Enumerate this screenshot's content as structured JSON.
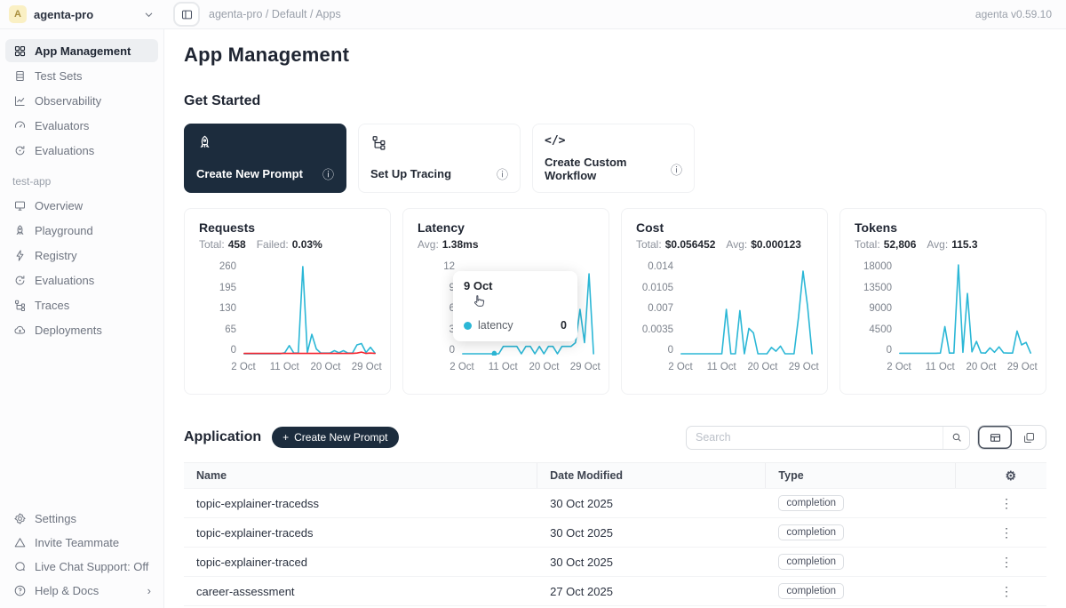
{
  "topbar": {
    "avatar_letter": "A",
    "workspace": "agenta-pro",
    "breadcrumb": "agenta-pro / Default / Apps",
    "version": "agenta v0.59.10"
  },
  "sidebar": {
    "workspace_items": [
      {
        "label": "App Management",
        "icon": "grid-icon",
        "active": true
      },
      {
        "label": "Test Sets",
        "icon": "table-icon"
      },
      {
        "label": "Observability",
        "icon": "chart-icon"
      },
      {
        "label": "Evaluators",
        "icon": "gauge-icon"
      },
      {
        "label": "Evaluations",
        "icon": "sync-icon"
      }
    ],
    "app_section_label": "test-app",
    "app_items": [
      {
        "label": "Overview",
        "icon": "monitor-icon"
      },
      {
        "label": "Playground",
        "icon": "rocket-icon"
      },
      {
        "label": "Registry",
        "icon": "bolt-icon"
      },
      {
        "label": "Evaluations",
        "icon": "sync-icon"
      },
      {
        "label": "Traces",
        "icon": "trace-icon"
      },
      {
        "label": "Deployments",
        "icon": "cloud-icon"
      }
    ],
    "footer_items": [
      {
        "label": "Settings",
        "icon": "gear-icon"
      },
      {
        "label": "Invite Teammate",
        "icon": "triangle-icon"
      },
      {
        "label": "Live Chat Support: Off",
        "icon": "chat-icon"
      },
      {
        "label": "Help & Docs",
        "icon": "help-icon"
      }
    ]
  },
  "main": {
    "title": "App Management",
    "get_started": {
      "title": "Get Started",
      "cards": [
        {
          "label": "Create New Prompt",
          "variant": "dark",
          "icon": "rocket-icon"
        },
        {
          "label": "Set Up Tracing",
          "variant": "light",
          "icon": "trace-icon"
        },
        {
          "label": "Create Custom Workflow",
          "variant": "light",
          "icon": "code-icon"
        }
      ]
    },
    "application": {
      "title": "Application",
      "create_button_label": "Create New Prompt",
      "search_placeholder": "Search",
      "table": {
        "headers": [
          "Name",
          "Date Modified",
          "Type"
        ],
        "rows": [
          {
            "name": "topic-explainer-tracedss",
            "date_modified": "30 Oct 2025",
            "type": "completion"
          },
          {
            "name": "topic-explainer-traceds",
            "date_modified": "30 Oct 2025",
            "type": "completion"
          },
          {
            "name": "topic-explainer-traced",
            "date_modified": "30 Oct 2025",
            "type": "completion"
          },
          {
            "name": "career-assessment",
            "date_modified": "27 Oct 2025",
            "type": "completion"
          }
        ]
      }
    }
  },
  "latency_tooltip": {
    "date": "9 Oct",
    "series": "latency",
    "value": "0"
  },
  "icons": {
    "info": "ⓘ",
    "gear": "⚙",
    "ellipsis": "⋮",
    "chevron_right": "›",
    "plus": "+",
    "code": "</>"
  },
  "colors": {
    "accent": "#2bb7d6",
    "failed_red": "#f5222d",
    "dark_navy": "#1c2c3d"
  },
  "chart_data": [
    {
      "type": "line",
      "title": "Requests",
      "stats": [
        {
          "label": "Total:",
          "value": "458"
        },
        {
          "label": "Failed:",
          "value": "0.03%"
        }
      ],
      "ylim": [
        0,
        260
      ],
      "yticks": [
        "260",
        "195",
        "130",
        "65",
        "0"
      ],
      "xlim": [
        2,
        31
      ],
      "xticks": [
        {
          "label": "2 Oct",
          "day": 2
        },
        {
          "label": "11 Oct",
          "day": 11
        },
        {
          "label": "20 Oct",
          "day": 20
        },
        {
          "label": "29 Oct",
          "day": 29
        }
      ],
      "series": [
        {
          "name": "requests",
          "color": "#2bb7d6",
          "points": [
            [
              2,
              0
            ],
            [
              3,
              0
            ],
            [
              4,
              0
            ],
            [
              5,
              0
            ],
            [
              6,
              0
            ],
            [
              7,
              0
            ],
            [
              8,
              0
            ],
            [
              9,
              0
            ],
            [
              10,
              0
            ],
            [
              11,
              3
            ],
            [
              12,
              24
            ],
            [
              13,
              2
            ],
            [
              14,
              2
            ],
            [
              15,
              255
            ],
            [
              16,
              3
            ],
            [
              17,
              57
            ],
            [
              18,
              14
            ],
            [
              19,
              2
            ],
            [
              20,
              2
            ],
            [
              21,
              2
            ],
            [
              22,
              9
            ],
            [
              23,
              3
            ],
            [
              24,
              9
            ],
            [
              25,
              2
            ],
            [
              26,
              2
            ],
            [
              27,
              26
            ],
            [
              28,
              30
            ],
            [
              29,
              4
            ],
            [
              30,
              19
            ],
            [
              31,
              2
            ]
          ]
        },
        {
          "name": "failed",
          "color": "#f5222d",
          "points": [
            [
              2,
              1
            ],
            [
              3,
              1
            ],
            [
              4,
              1
            ],
            [
              5,
              1
            ],
            [
              6,
              1
            ],
            [
              7,
              1
            ],
            [
              8,
              1
            ],
            [
              9,
              1
            ],
            [
              10,
              1
            ],
            [
              11,
              1
            ],
            [
              12,
              1
            ],
            [
              13,
              1
            ],
            [
              14,
              1
            ],
            [
              15,
              1
            ],
            [
              16,
              1
            ],
            [
              17,
              1
            ],
            [
              18,
              1
            ],
            [
              19,
              1
            ],
            [
              20,
              1
            ],
            [
              21,
              1
            ],
            [
              22,
              1
            ],
            [
              23,
              1
            ],
            [
              24,
              1
            ],
            [
              25,
              1
            ],
            [
              26,
              1
            ],
            [
              27,
              2
            ],
            [
              28,
              5
            ],
            [
              29,
              1
            ],
            [
              30,
              2
            ],
            [
              31,
              1
            ]
          ]
        }
      ]
    },
    {
      "type": "line",
      "title": "Latency",
      "stats": [
        {
          "label": "Avg:",
          "value": "1.38ms"
        }
      ],
      "ylim": [
        0,
        12
      ],
      "yticks": [
        "12",
        "9",
        "6",
        "3",
        "0"
      ],
      "xlim": [
        2,
        31
      ],
      "xticks": [
        {
          "label": "2 Oct",
          "day": 2
        },
        {
          "label": "11 Oct",
          "day": 11
        },
        {
          "label": "20 Oct",
          "day": 20
        },
        {
          "label": "29 Oct",
          "day": 29
        }
      ],
      "marker": {
        "day": 9,
        "value": 0
      },
      "series": [
        {
          "name": "latency",
          "color": "#2bb7d6",
          "points": [
            [
              2,
              0
            ],
            [
              3,
              0
            ],
            [
              4,
              0
            ],
            [
              5,
              0
            ],
            [
              6,
              0
            ],
            [
              7,
              0
            ],
            [
              8,
              0
            ],
            [
              9,
              0
            ],
            [
              10,
              0
            ],
            [
              11,
              1
            ],
            [
              12,
              1
            ],
            [
              13,
              1
            ],
            [
              14,
              1
            ],
            [
              15,
              0
            ],
            [
              16,
              1
            ],
            [
              17,
              1
            ],
            [
              18,
              0
            ],
            [
              19,
              1
            ],
            [
              20,
              0
            ],
            [
              21,
              1
            ],
            [
              22,
              1
            ],
            [
              23,
              0
            ],
            [
              24,
              1
            ],
            [
              25,
              1
            ],
            [
              26,
              1
            ],
            [
              27,
              1.5
            ],
            [
              28,
              6
            ],
            [
              29,
              1.5
            ],
            [
              30,
              10.8
            ],
            [
              31,
              0
            ]
          ]
        }
      ]
    },
    {
      "type": "line",
      "title": "Cost",
      "stats": [
        {
          "label": "Total:",
          "value": "$0.056452"
        },
        {
          "label": "Avg:",
          "value": "$0.000123"
        }
      ],
      "ylim": [
        0,
        0.014
      ],
      "yticks": [
        "0.014",
        "0.0105",
        "0.007",
        "0.0035",
        "0"
      ],
      "xlim": [
        2,
        31
      ],
      "xticks": [
        {
          "label": "2 Oct",
          "day": 2
        },
        {
          "label": "11 Oct",
          "day": 11
        },
        {
          "label": "20 Oct",
          "day": 20
        },
        {
          "label": "29 Oct",
          "day": 29
        }
      ],
      "series": [
        {
          "name": "cost",
          "color": "#2bb7d6",
          "points": [
            [
              2,
              0
            ],
            [
              3,
              0
            ],
            [
              4,
              0
            ],
            [
              5,
              0
            ],
            [
              6,
              0
            ],
            [
              7,
              0
            ],
            [
              8,
              0
            ],
            [
              9,
              0
            ],
            [
              10,
              0
            ],
            [
              11,
              0
            ],
            [
              12,
              0.007
            ],
            [
              13,
              0
            ],
            [
              14,
              0
            ],
            [
              15,
              0.0068
            ],
            [
              16,
              0
            ],
            [
              17,
              0.004
            ],
            [
              18,
              0.0033
            ],
            [
              19,
              0
            ],
            [
              20,
              0
            ],
            [
              21,
              0
            ],
            [
              22,
              0.001
            ],
            [
              23,
              0.0004
            ],
            [
              24,
              0.0012
            ],
            [
              25,
              0
            ],
            [
              26,
              0
            ],
            [
              27,
              0
            ],
            [
              28,
              0.0058
            ],
            [
              29,
              0.013
            ],
            [
              30,
              0.0075
            ],
            [
              31,
              0
            ]
          ]
        }
      ]
    },
    {
      "type": "line",
      "title": "Tokens",
      "stats": [
        {
          "label": "Total:",
          "value": "52,806"
        },
        {
          "label": "Avg:",
          "value": "115.3"
        }
      ],
      "ylim": [
        0,
        18000
      ],
      "yticks": [
        "18000",
        "13500",
        "9000",
        "4500",
        "0"
      ],
      "xlim": [
        2,
        31
      ],
      "xticks": [
        {
          "label": "2 Oct",
          "day": 2
        },
        {
          "label": "11 Oct",
          "day": 11
        },
        {
          "label": "20 Oct",
          "day": 20
        },
        {
          "label": "29 Oct",
          "day": 29
        }
      ],
      "series": [
        {
          "name": "tokens",
          "color": "#2bb7d6",
          "points": [
            [
              2,
              100
            ],
            [
              3,
              100
            ],
            [
              4,
              100
            ],
            [
              5,
              100
            ],
            [
              6,
              100
            ],
            [
              7,
              100
            ],
            [
              8,
              100
            ],
            [
              9,
              100
            ],
            [
              10,
              100
            ],
            [
              11,
              150
            ],
            [
              12,
              5500
            ],
            [
              13,
              150
            ],
            [
              14,
              150
            ],
            [
              15,
              18000
            ],
            [
              16,
              300
            ],
            [
              17,
              12200
            ],
            [
              18,
              400
            ],
            [
              19,
              2500
            ],
            [
              20,
              200
            ],
            [
              21,
              150
            ],
            [
              22,
              1200
            ],
            [
              23,
              300
            ],
            [
              24,
              1400
            ],
            [
              25,
              200
            ],
            [
              26,
              150
            ],
            [
              27,
              150
            ],
            [
              28,
              4600
            ],
            [
              29,
              1800
            ],
            [
              30,
              2300
            ],
            [
              31,
              150
            ]
          ]
        }
      ]
    }
  ]
}
